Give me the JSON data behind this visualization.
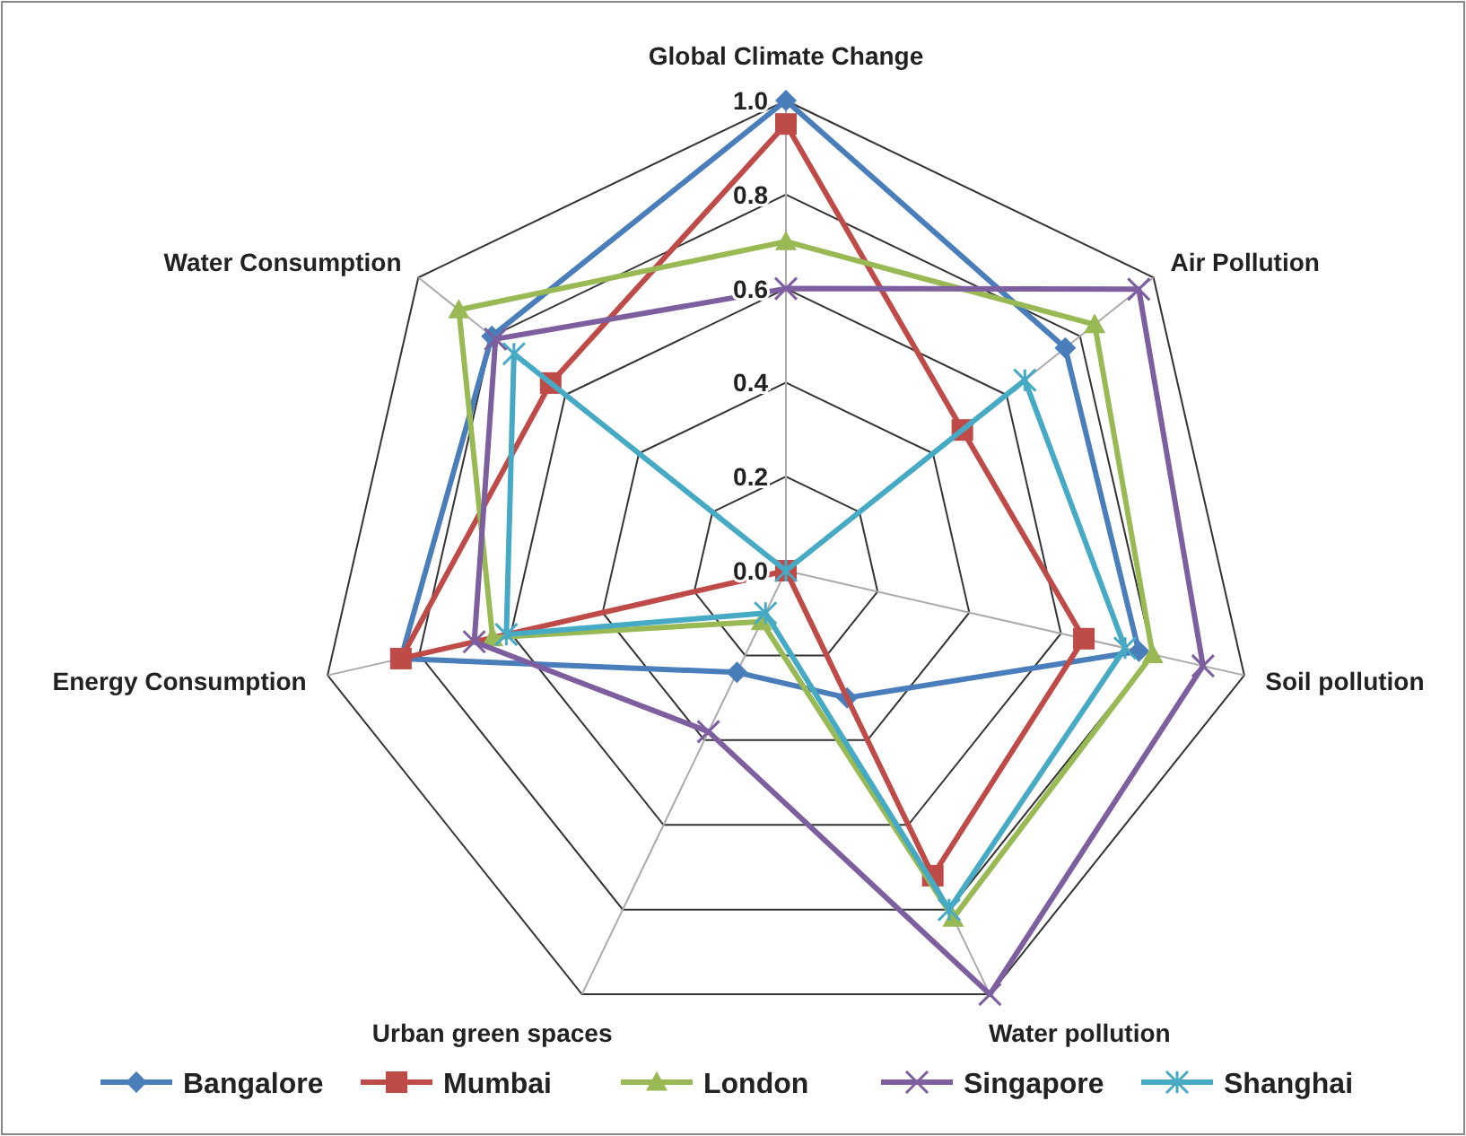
{
  "chart_data": {
    "type": "radar",
    "categories": [
      "Global Climate Change",
      "Air Pollution",
      "Soil pollution",
      "Water pollution",
      "Urban green spaces",
      "Energy Consumption",
      "Water Consumption"
    ],
    "series": [
      {
        "name": "Bangalore",
        "color": "#4a7ebb",
        "marker": "diamond",
        "values": [
          1.0,
          0.76,
          0.77,
          0.3,
          0.24,
          0.84,
          0.8
        ]
      },
      {
        "name": "Mumbai",
        "color": "#be4b48",
        "marker": "square",
        "values": [
          0.95,
          0.48,
          0.65,
          0.72,
          0.0,
          0.84,
          0.64
        ]
      },
      {
        "name": "London",
        "color": "#98b954",
        "marker": "triangle",
        "values": [
          0.7,
          0.84,
          0.8,
          0.82,
          0.12,
          0.64,
          0.89
        ]
      },
      {
        "name": "Singapore",
        "color": "#7d5fa0",
        "marker": "cross",
        "values": [
          0.6,
          0.96,
          0.91,
          1.0,
          0.38,
          0.68,
          0.79
        ]
      },
      {
        "name": "Shanghai",
        "color": "#46aac5",
        "marker": "star",
        "values": [
          0.0,
          0.65,
          0.74,
          0.8,
          0.1,
          0.61,
          0.74
        ]
      }
    ],
    "ylim": [
      0,
      1
    ],
    "yticks": [
      {
        "value": 0,
        "label": "0.0"
      },
      0.2,
      0.4,
      0.6,
      0.8,
      {
        "value": 1,
        "label": "1.0"
      }
    ],
    "grid": true,
    "legend": "bottom"
  }
}
